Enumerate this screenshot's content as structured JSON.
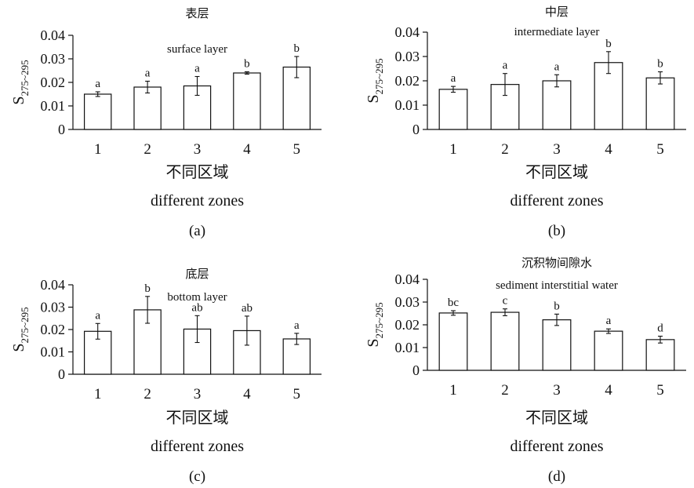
{
  "chart_data": [
    {
      "type": "bar",
      "panel_label": "(a)",
      "title_cn": "表层",
      "title_en": "surface layer",
      "ylabel_main": "S",
      "ylabel_sub": "275~295",
      "xlabel_cn": "不同区域",
      "xlabel_en": "different zones",
      "categories": [
        "1",
        "2",
        "3",
        "4",
        "5"
      ],
      "yticks": [
        "0",
        "0.01",
        "0.02",
        "0.03",
        "0.04"
      ],
      "ylim": [
        0,
        0.04
      ],
      "values": [
        0.015,
        0.018,
        0.0185,
        0.024,
        0.0265
      ],
      "errors": [
        0.001,
        0.0025,
        0.004,
        0.0005,
        0.0045
      ],
      "labels": [
        "a",
        "a",
        "a",
        "b",
        "b"
      ]
    },
    {
      "type": "bar",
      "panel_label": "(b)",
      "title_cn": "中层",
      "title_en": "intermediate layer",
      "ylabel_main": "S",
      "ylabel_sub": "275~295",
      "xlabel_cn": "不同区域",
      "xlabel_en": "different zones",
      "categories": [
        "1",
        "2",
        "3",
        "4",
        "5"
      ],
      "yticks": [
        "0",
        "0.01",
        "0.02",
        "0.03",
        "0.04"
      ],
      "ylim": [
        0,
        0.04
      ],
      "values": [
        0.0165,
        0.0185,
        0.02,
        0.0275,
        0.0212
      ],
      "errors": [
        0.0012,
        0.0045,
        0.0025,
        0.0045,
        0.0025
      ],
      "labels": [
        "a",
        "a",
        "a",
        "b",
        "b"
      ]
    },
    {
      "type": "bar",
      "panel_label": "(c)",
      "title_cn": "底层",
      "title_en": "bottom layer",
      "ylabel_main": "S",
      "ylabel_sub": "275~295",
      "xlabel_cn": "不同区域",
      "xlabel_en": "different zones",
      "categories": [
        "1",
        "2",
        "3",
        "4",
        "5"
      ],
      "yticks": [
        "0",
        "0.01",
        "0.02",
        "0.03",
        "0.04"
      ],
      "ylim": [
        0,
        0.04
      ],
      "values": [
        0.0192,
        0.0288,
        0.0202,
        0.0195,
        0.0158
      ],
      "errors": [
        0.0035,
        0.006,
        0.006,
        0.0065,
        0.0025
      ],
      "labels": [
        "a",
        "b",
        "ab",
        "ab",
        "a"
      ]
    },
    {
      "type": "bar",
      "panel_label": "(d)",
      "title_cn": "沉积物间隙水",
      "title_en": "sediment interstitial water",
      "ylabel_main": "S",
      "ylabel_sub": "275~295",
      "xlabel_cn": "不同区域",
      "xlabel_en": "different zones",
      "categories": [
        "1",
        "2",
        "3",
        "4",
        "5"
      ],
      "yticks": [
        "0",
        "0.01",
        "0.02",
        "0.03",
        "0.04"
      ],
      "ylim": [
        0,
        0.04
      ],
      "values": [
        0.0252,
        0.0255,
        0.0222,
        0.0172,
        0.0135
      ],
      "errors": [
        0.001,
        0.0015,
        0.0025,
        0.001,
        0.0015
      ],
      "labels": [
        "bc",
        "c",
        "b",
        "a",
        "d"
      ]
    }
  ]
}
